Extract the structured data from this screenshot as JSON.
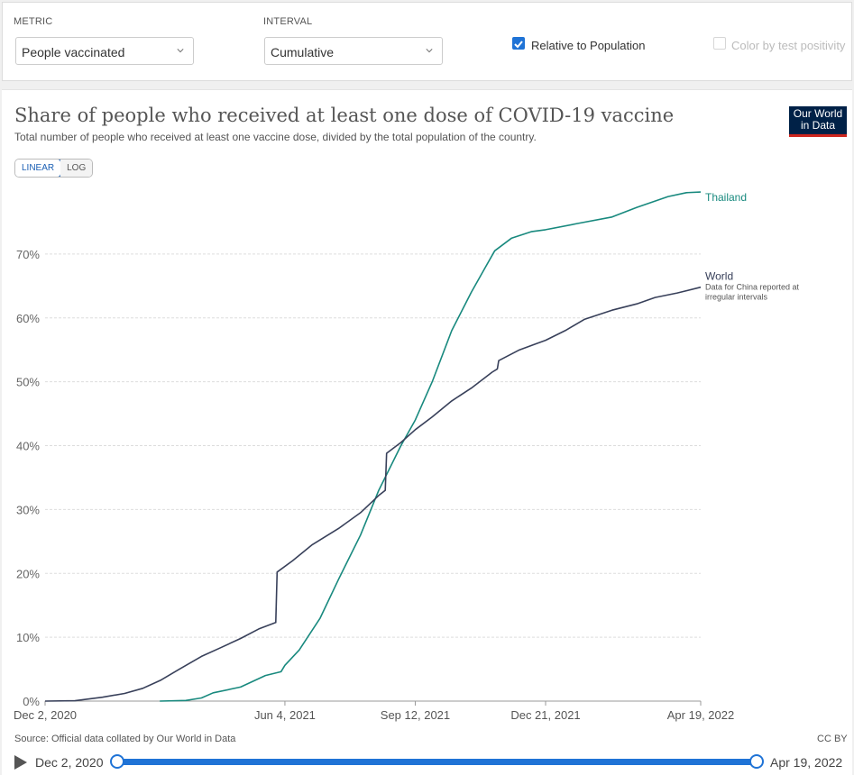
{
  "controls": {
    "metric_label": "METRIC",
    "metric_value": "People vaccinated",
    "interval_label": "INTERVAL",
    "interval_value": "Cumulative",
    "relative_label": "Relative to Population",
    "relative_checked": true,
    "color_label": "Color by test positivity",
    "color_checked": false
  },
  "logo": {
    "line1": "Our World",
    "line2": "in Data"
  },
  "scale_toggle": {
    "linear": "LINEAR",
    "log": "LOG",
    "active": "linear"
  },
  "footer": {
    "source": "Source: Official data collated by Our World in Data",
    "license": "CC BY"
  },
  "timeline": {
    "start": "Dec 2, 2020",
    "end": "Apr 19, 2022"
  },
  "colors": {
    "thailand": "#18897e",
    "world": "#38405a",
    "accent": "#1f73d6"
  },
  "chart_data": {
    "type": "line",
    "title": "Share of people who received at least one dose of COVID-19 vaccine",
    "subtitle": "Total number of people who received at least one vaccine dose, divided by the total population of the country.",
    "x_range": [
      "2020-12-02",
      "2022-04-19"
    ],
    "x_ticks": [
      {
        "date": "2020-12-02",
        "label": "Dec 2, 2020"
      },
      {
        "date": "2021-06-04",
        "label": "Jun 4, 2021"
      },
      {
        "date": "2021-09-12",
        "label": "Sep 12, 2021"
      },
      {
        "date": "2021-12-21",
        "label": "Dec 21, 2021"
      },
      {
        "date": "2022-04-19",
        "label": "Apr 19, 2022"
      }
    ],
    "y_range": [
      0,
      80
    ],
    "y_ticks": [
      {
        "value": 0,
        "label": "0%"
      },
      {
        "value": 10,
        "label": "10%"
      },
      {
        "value": 20,
        "label": "20%"
      },
      {
        "value": 30,
        "label": "30%"
      },
      {
        "value": 40,
        "label": "40%"
      },
      {
        "value": 50,
        "label": "50%"
      },
      {
        "value": 60,
        "label": "60%"
      },
      {
        "value": 70,
        "label": "70%"
      }
    ],
    "grid": true,
    "series": [
      {
        "name": "Thailand",
        "color_key": "thailand",
        "points": [
          [
            "2021-02-28",
            0
          ],
          [
            "2021-03-20",
            0.1
          ],
          [
            "2021-04-01",
            0.5
          ],
          [
            "2021-04-10",
            1.3
          ],
          [
            "2021-05-01",
            2.2
          ],
          [
            "2021-05-20",
            4
          ],
          [
            "2021-06-01",
            4.6
          ],
          [
            "2021-06-04",
            5.6
          ],
          [
            "2021-06-15",
            8
          ],
          [
            "2021-07-01",
            13
          ],
          [
            "2021-07-15",
            19
          ],
          [
            "2021-08-01",
            26
          ],
          [
            "2021-08-15",
            33
          ],
          [
            "2021-09-01",
            40
          ],
          [
            "2021-09-12",
            44
          ],
          [
            "2021-09-25",
            50
          ],
          [
            "2021-10-10",
            58
          ],
          [
            "2021-10-25",
            64
          ],
          [
            "2021-11-05",
            68
          ],
          [
            "2021-11-12",
            70.5
          ],
          [
            "2021-11-25",
            72.5
          ],
          [
            "2021-12-10",
            73.5
          ],
          [
            "2021-12-21",
            73.8
          ],
          [
            "2022-01-15",
            74.8
          ],
          [
            "2022-02-10",
            75.8
          ],
          [
            "2022-03-01",
            77.3
          ],
          [
            "2022-03-25",
            79
          ],
          [
            "2022-04-08",
            79.6
          ],
          [
            "2022-04-19",
            79.7
          ]
        ]
      },
      {
        "name": "World",
        "note": "Data for China reported at irregular intervals",
        "color_key": "world",
        "points": [
          [
            "2020-12-02",
            0
          ],
          [
            "2020-12-25",
            0.05
          ],
          [
            "2021-01-15",
            0.6
          ],
          [
            "2021-02-01",
            1.2
          ],
          [
            "2021-02-15",
            2
          ],
          [
            "2021-03-01",
            3.3
          ],
          [
            "2021-03-15",
            5
          ],
          [
            "2021-04-01",
            7
          ],
          [
            "2021-04-15",
            8.3
          ],
          [
            "2021-05-01",
            9.8
          ],
          [
            "2021-05-15",
            11.3
          ],
          [
            "2021-05-28",
            12.3
          ],
          [
            "2021-05-29",
            20.2
          ],
          [
            "2021-06-10",
            22
          ],
          [
            "2021-06-25",
            24.5
          ],
          [
            "2021-07-15",
            27
          ],
          [
            "2021-08-01",
            29.5
          ],
          [
            "2021-08-15",
            32.2
          ],
          [
            "2021-08-20",
            33
          ],
          [
            "2021-08-21",
            38.8
          ],
          [
            "2021-09-01",
            40.5
          ],
          [
            "2021-09-12",
            42.5
          ],
          [
            "2021-09-25",
            44.5
          ],
          [
            "2021-10-10",
            47
          ],
          [
            "2021-10-25",
            49
          ],
          [
            "2021-11-10",
            51.5
          ],
          [
            "2021-11-14",
            52
          ],
          [
            "2021-11-15",
            53.3
          ],
          [
            "2021-12-01",
            55
          ],
          [
            "2021-12-21",
            56.5
          ],
          [
            "2022-01-05",
            58
          ],
          [
            "2022-01-20",
            59.8
          ],
          [
            "2022-02-10",
            61.2
          ],
          [
            "2022-03-01",
            62.2
          ],
          [
            "2022-03-15",
            63.2
          ],
          [
            "2022-04-01",
            63.9
          ],
          [
            "2022-04-19",
            64.8
          ]
        ]
      }
    ]
  }
}
